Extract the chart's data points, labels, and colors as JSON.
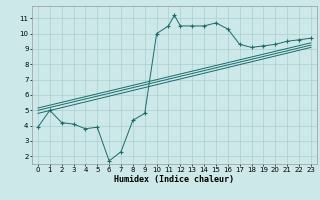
{
  "title": "",
  "xlabel": "Humidex (Indice chaleur)",
  "ylabel": "",
  "bg_color": "#cce8e8",
  "grid_color": "#aacfcf",
  "line_color": "#1a6b6b",
  "xlim": [
    -0.5,
    23.5
  ],
  "ylim": [
    1.5,
    11.8
  ],
  "xticks": [
    0,
    1,
    2,
    3,
    4,
    5,
    6,
    7,
    8,
    9,
    10,
    11,
    12,
    13,
    14,
    15,
    16,
    17,
    18,
    19,
    20,
    21,
    22,
    23
  ],
  "yticks": [
    2,
    3,
    4,
    5,
    6,
    7,
    8,
    9,
    10,
    11
  ],
  "main_series": [
    [
      0,
      3.9
    ],
    [
      1,
      5.0
    ],
    [
      2,
      4.2
    ],
    [
      3,
      4.1
    ],
    [
      4,
      3.8
    ],
    [
      5,
      3.9
    ],
    [
      6,
      1.7
    ],
    [
      7,
      2.3
    ],
    [
      8,
      4.35
    ],
    [
      9,
      4.8
    ],
    [
      10,
      10.0
    ],
    [
      11,
      10.5
    ],
    [
      11.5,
      11.2
    ],
    [
      12,
      10.5
    ],
    [
      13,
      10.5
    ],
    [
      14,
      10.5
    ],
    [
      15,
      10.7
    ],
    [
      16,
      10.3
    ],
    [
      17,
      9.3
    ],
    [
      18,
      9.1
    ],
    [
      19,
      9.2
    ],
    [
      20,
      9.3
    ],
    [
      21,
      9.5
    ],
    [
      22,
      9.6
    ],
    [
      23,
      9.7
    ]
  ],
  "line1": [
    [
      0,
      4.8
    ],
    [
      23,
      9.1
    ]
  ],
  "line2": [
    [
      0,
      5.0
    ],
    [
      23,
      9.25
    ]
  ],
  "line3": [
    [
      0,
      5.15
    ],
    [
      23,
      9.4
    ]
  ]
}
